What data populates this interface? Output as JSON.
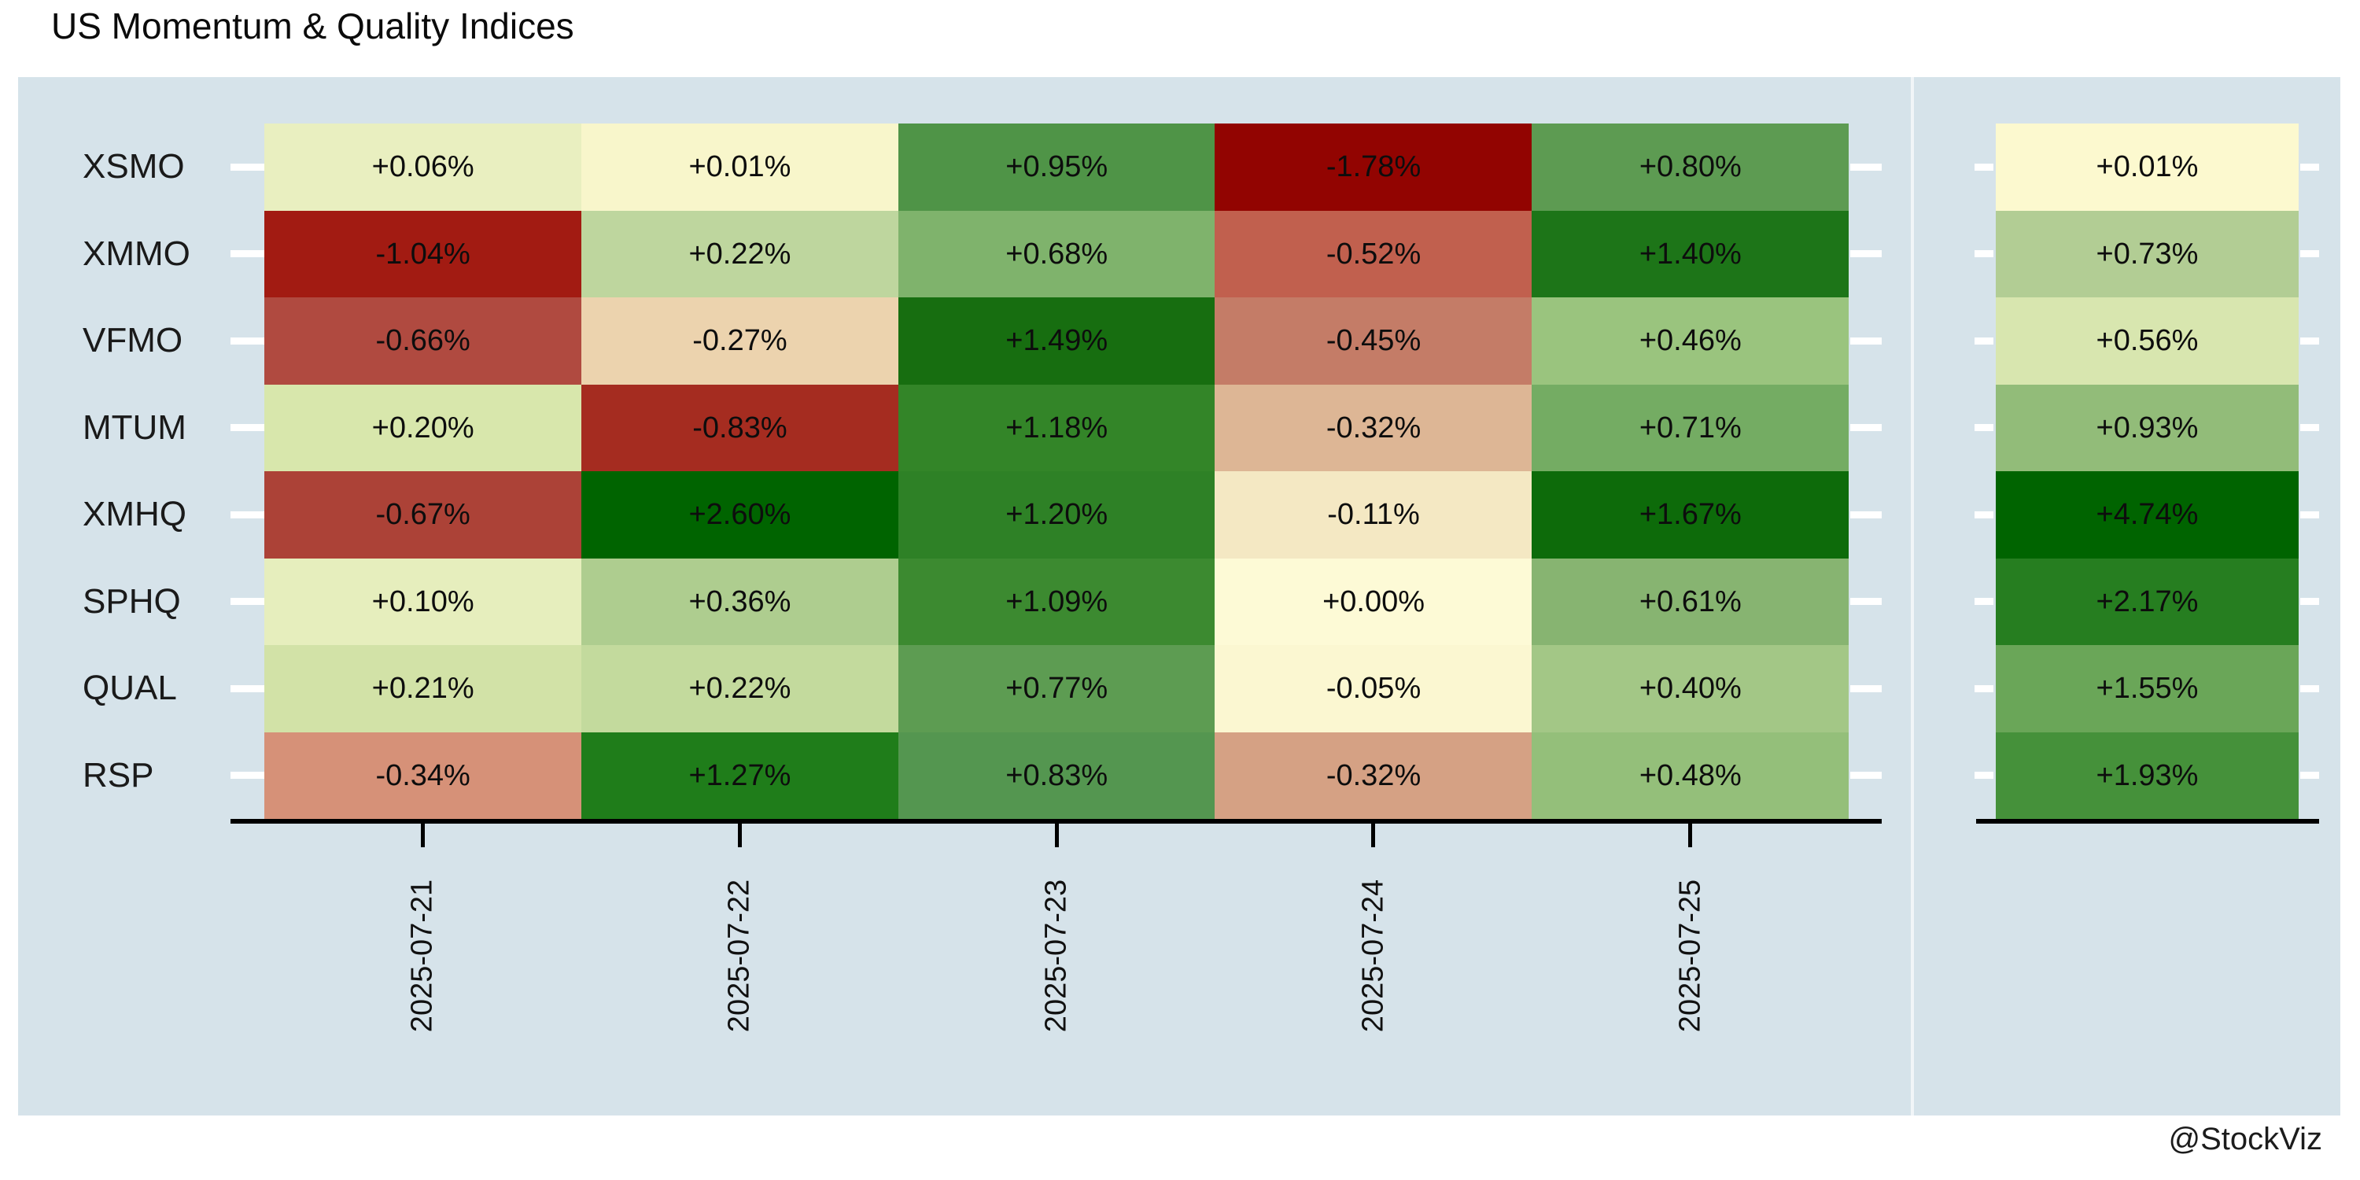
{
  "title": "US Momentum & Quality Indices",
  "watermark": "@StockViz",
  "colors": {
    "page_bg": "#ffffff",
    "plot_bg": "#d6e3ea",
    "axis_black": "#000000",
    "tick_white": "#ffffff",
    "text": "#0d0d0d",
    "max_green": "#006400",
    "max_red": "#920401"
  },
  "chart_data": {
    "type": "heatmap",
    "title": "US Momentum & Quality Indices",
    "x_categories": [
      "2025-07-21",
      "2025-07-22",
      "2025-07-23",
      "2025-07-24",
      "2025-07-25"
    ],
    "y_categories": [
      "XSMO",
      "XMMO",
      "VFMO",
      "MTUM",
      "XMHQ",
      "SPHQ",
      "QUAL",
      "RSP"
    ],
    "legend": "none",
    "grid": "off",
    "x_tick_rotation_deg": -90,
    "values_pct": [
      [
        0.06,
        0.01,
        0.95,
        -1.78,
        0.8
      ],
      [
        -1.04,
        0.22,
        0.68,
        -0.52,
        1.4
      ],
      [
        -0.66,
        -0.27,
        1.49,
        -0.45,
        0.46
      ],
      [
        0.2,
        -0.83,
        1.18,
        -0.32,
        0.71
      ],
      [
        -0.67,
        2.6,
        1.2,
        -0.11,
        1.67
      ],
      [
        0.1,
        0.36,
        1.09,
        0.0,
        0.61
      ],
      [
        0.21,
        0.22,
        0.77,
        -0.05,
        0.4
      ],
      [
        -0.34,
        1.27,
        0.83,
        -0.32,
        0.48
      ]
    ],
    "cell_labels": [
      [
        "+0.06%",
        "+0.01%",
        "+0.95%",
        "-1.78%",
        "+0.80%"
      ],
      [
        "-1.04%",
        "+0.22%",
        "+0.68%",
        "-0.52%",
        "+1.40%"
      ],
      [
        "-0.66%",
        "-0.27%",
        "+1.49%",
        "-0.45%",
        "+0.46%"
      ],
      [
        "+0.20%",
        "-0.83%",
        "+1.18%",
        "-0.32%",
        "+0.71%"
      ],
      [
        "-0.67%",
        "+2.60%",
        "+1.20%",
        "-0.11%",
        "+1.67%"
      ],
      [
        "+0.10%",
        "+0.36%",
        "+1.09%",
        "+0.00%",
        "+0.61%"
      ],
      [
        "+0.21%",
        "+0.22%",
        "+0.77%",
        "-0.05%",
        "+0.40%"
      ],
      [
        "-0.34%",
        "+1.27%",
        "+0.83%",
        "-0.32%",
        "+0.48%"
      ]
    ],
    "cell_colors": [
      [
        "#e9efc0",
        "#f8f6cb",
        "#4f9447",
        "#920401",
        "#5d9b52"
      ],
      [
        "#a21b12",
        "#bed69e",
        "#7fb36c",
        "#c1604e",
        "#1d7518"
      ],
      [
        "#b04a40",
        "#ecd3ae",
        "#176e10",
        "#c47c67",
        "#9ac47e"
      ],
      [
        "#d8e7ac",
        "#a52c20",
        "#338528",
        "#ddb695",
        "#74ac63"
      ],
      [
        "#ac4237",
        "#006400",
        "#2e8126",
        "#f4e8c3",
        "#0d6b0a"
      ],
      [
        "#e6eebd",
        "#aecd8f",
        "#3c8a30",
        "#fdfad6",
        "#87b471"
      ],
      [
        "#d2e2a7",
        "#c3da9d",
        "#5d9c52",
        "#fbf7d1",
        "#a3c786"
      ],
      [
        "#d69178",
        "#1f7d1a",
        "#549650",
        "#d5a184",
        "#94bf7a"
      ]
    ],
    "totals_pct": [
      0.01,
      0.73,
      0.56,
      0.93,
      4.74,
      2.17,
      1.55,
      1.93
    ],
    "total_labels": [
      "+0.01%",
      "+0.73%",
      "+0.56%",
      "+0.93%",
      "+4.74%",
      "+2.17%",
      "+1.55%",
      "+1.93%"
    ],
    "total_colors": [
      "#fcf9cf",
      "#b2cd94",
      "#d8e6af",
      "#92bc79",
      "#006400",
      "#267e20",
      "#6aa658",
      "#45913a"
    ]
  }
}
